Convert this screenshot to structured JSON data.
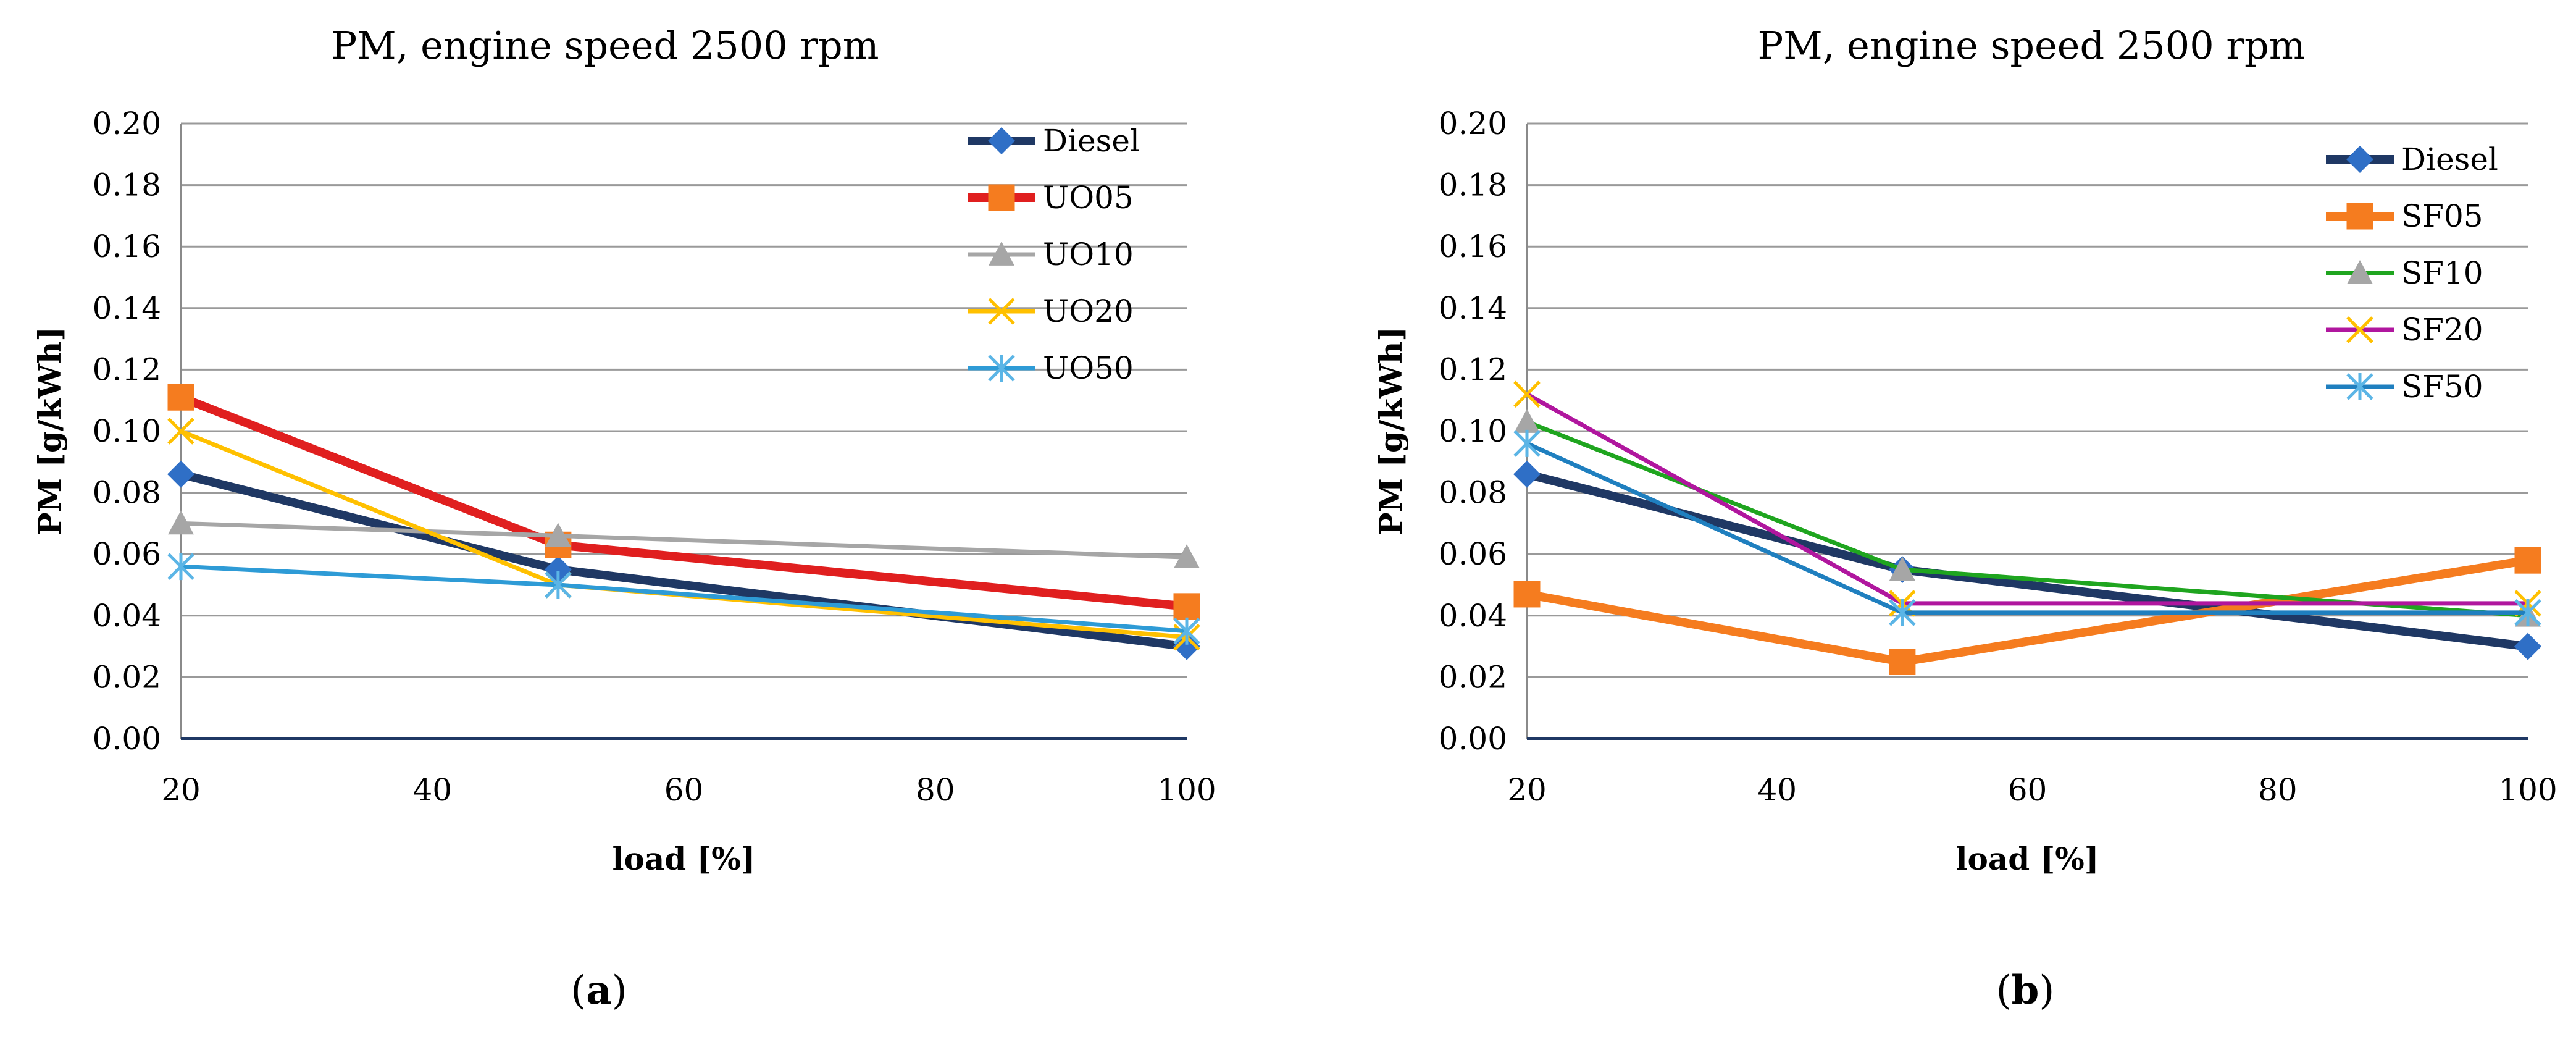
{
  "chart_data": [
    {
      "type": "line",
      "panel_label": "a",
      "title": "PM, engine speed 2500 rpm",
      "xlabel": "load [%]",
      "ylabel": "PM [g/kWh]",
      "xlim": [
        20,
        100
      ],
      "ylim": [
        0,
        0.2
      ],
      "xticks": [
        "20",
        "40",
        "60",
        "80",
        "100"
      ],
      "yticks": [
        "0.00",
        "0.02",
        "0.04",
        "0.06",
        "0.08",
        "0.10",
        "0.12",
        "0.14",
        "0.16",
        "0.18",
        "0.20"
      ],
      "grid": "horizontal",
      "legend_position": "top-right",
      "x": [
        20,
        50,
        100
      ],
      "series": [
        {
          "name": "Diesel",
          "color": "#1f3864",
          "marker": "diamond",
          "width": 14,
          "values": [
            0.086,
            0.055,
            0.03
          ]
        },
        {
          "name": "UO05",
          "color": "#e01f1f",
          "marker": "square",
          "width": 14,
          "values": [
            0.111,
            0.063,
            0.043
          ]
        },
        {
          "name": "UO10",
          "color": "#a6a6a6",
          "marker": "triangle",
          "width": 7,
          "values": [
            0.07,
            0.066,
            0.059
          ]
        },
        {
          "name": "UO20",
          "color": "#ffc000",
          "marker": "x",
          "width": 7,
          "values": [
            0.1,
            0.05,
            0.033
          ]
        },
        {
          "name": "UO50",
          "color": "#2e9bd6",
          "marker": "star",
          "width": 7,
          "values": [
            0.056,
            0.05,
            0.035
          ]
        }
      ]
    },
    {
      "type": "line",
      "panel_label": "b",
      "title": "PM, engine speed 2500 rpm",
      "xlabel": "load [%]",
      "ylabel": "PM [g/kWh]",
      "xlim": [
        20,
        100
      ],
      "ylim": [
        0,
        0.2
      ],
      "xticks": [
        "20",
        "40",
        "60",
        "80",
        "100"
      ],
      "yticks": [
        "0.00",
        "0.02",
        "0.04",
        "0.06",
        "0.08",
        "0.10",
        "0.12",
        "0.14",
        "0.16",
        "0.18",
        "0.20"
      ],
      "grid": "horizontal",
      "legend_position": "top-right",
      "x": [
        20,
        50,
        100
      ],
      "series": [
        {
          "name": "Diesel",
          "color": "#1f3864",
          "marker": "diamond",
          "width": 14,
          "values": [
            0.086,
            0.055,
            0.03
          ]
        },
        {
          "name": "SF05",
          "color": "#f57c1f",
          "marker": "square",
          "width": 14,
          "values": [
            0.047,
            0.025,
            0.058
          ]
        },
        {
          "name": "SF10",
          "color": "#1fa51f",
          "marker": "triangle",
          "width": 7,
          "values": [
            0.103,
            0.055,
            0.04
          ]
        },
        {
          "name": "SF20",
          "color": "#b0169e",
          "marker": "x",
          "width": 7,
          "values": [
            0.112,
            0.044,
            0.044
          ]
        },
        {
          "name": "SF50",
          "color": "#1f7fbf",
          "marker": "star",
          "width": 7,
          "values": [
            0.096,
            0.041,
            0.041
          ]
        }
      ]
    }
  ]
}
